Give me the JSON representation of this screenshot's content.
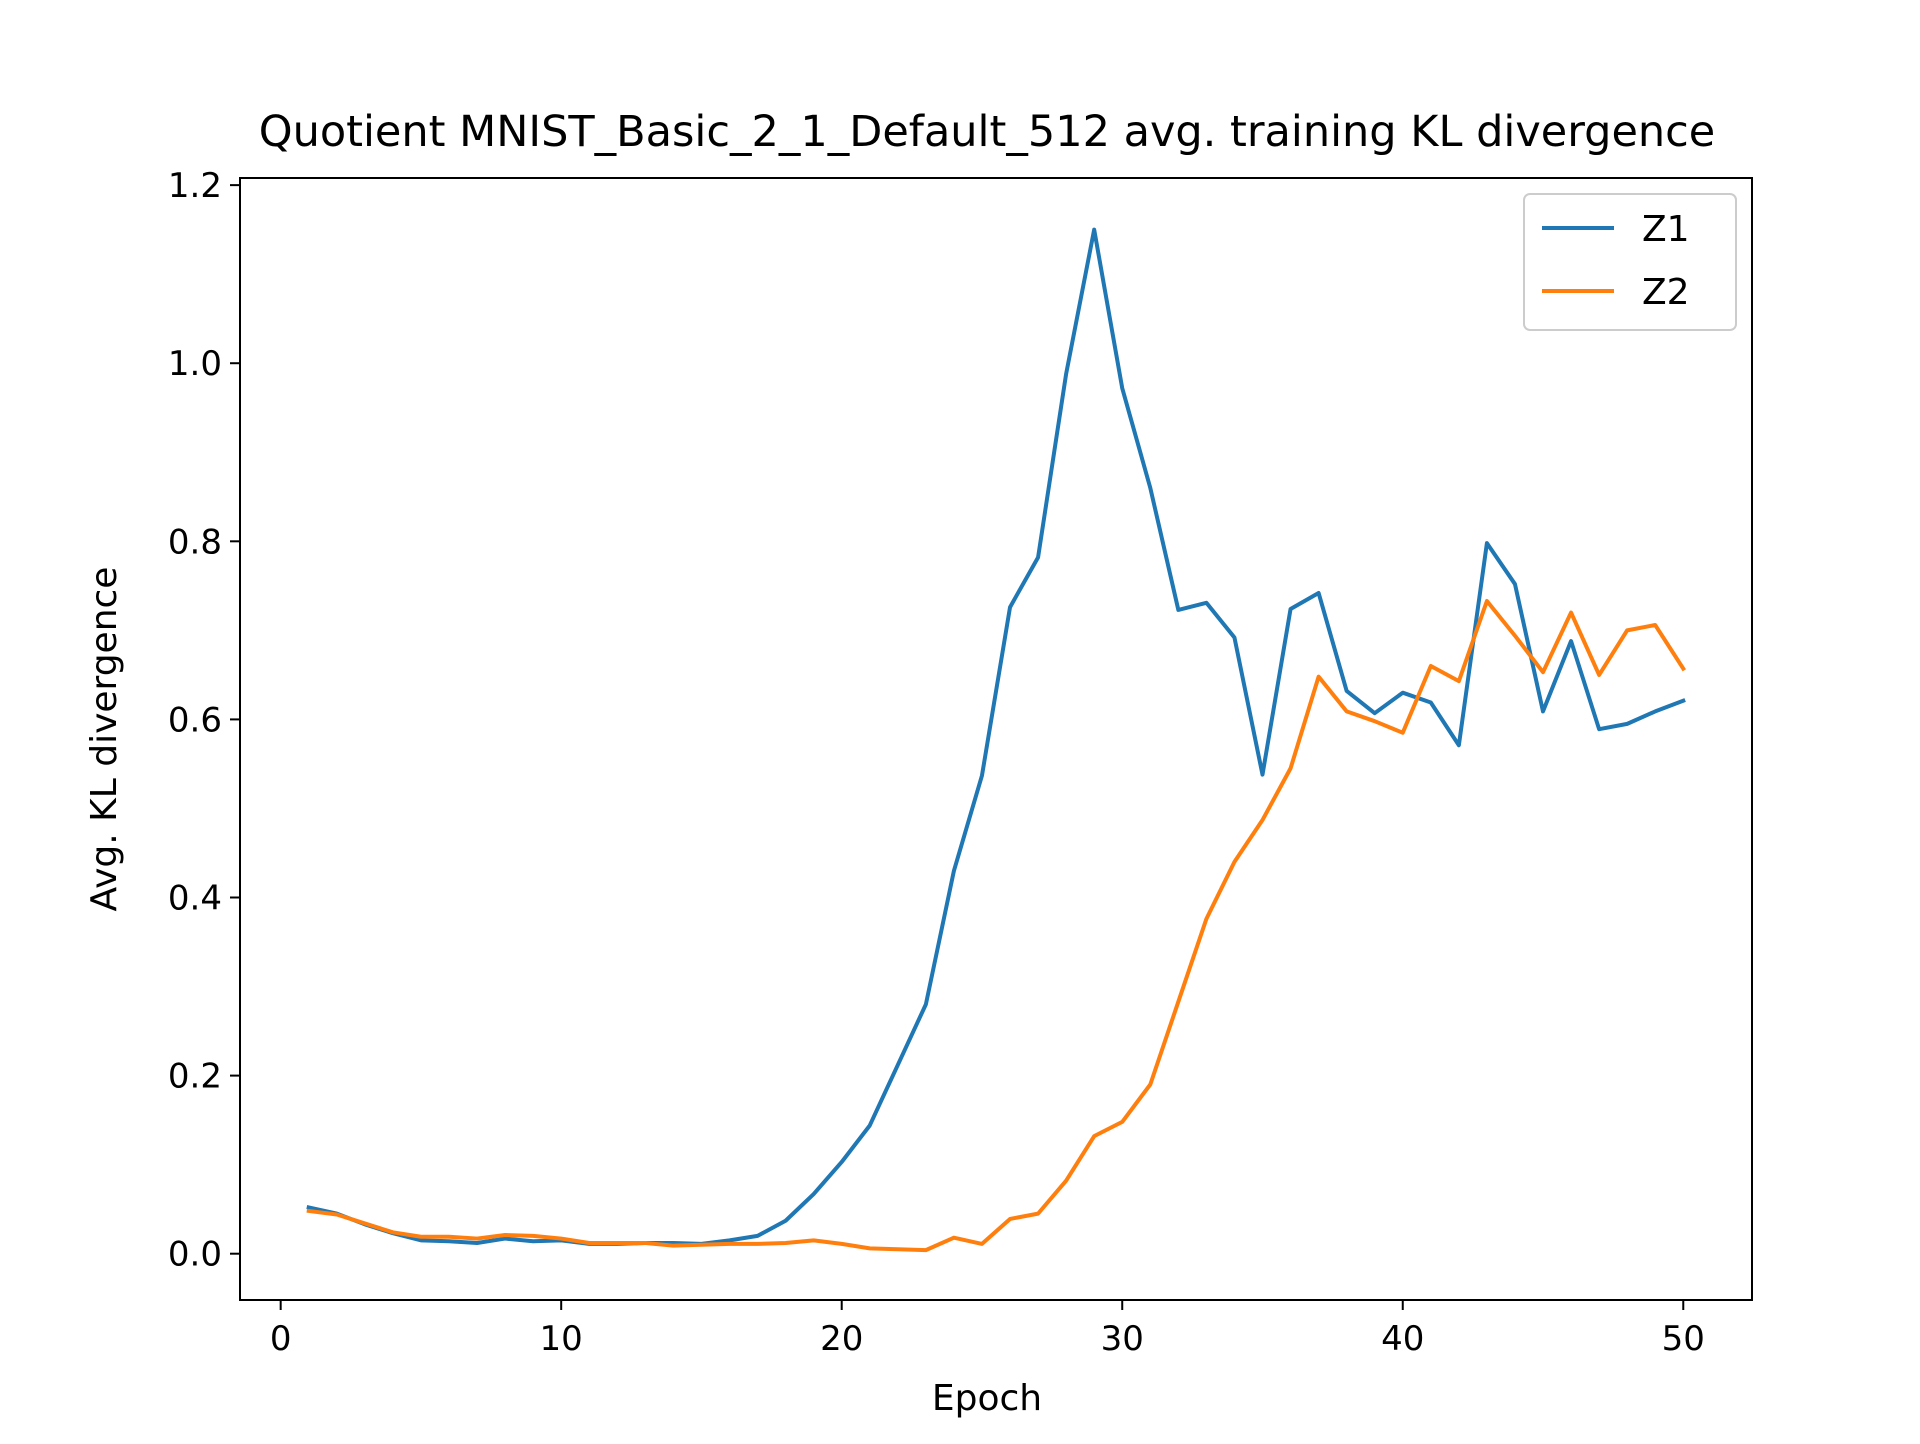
{
  "chart_data": {
    "type": "line",
    "title": "Quotient MNIST_Basic_2_1_Default_512 avg. training KL divergence",
    "xlabel": "Epoch",
    "ylabel": "Avg. KL divergence",
    "xlim": [
      -1.45,
      52.45
    ],
    "ylim": [
      -0.052,
      1.208
    ],
    "xticks": [
      0,
      10,
      20,
      30,
      40,
      50
    ],
    "yticks": [
      0.0,
      0.2,
      0.4,
      0.6,
      0.8,
      1.0,
      1.2
    ],
    "ytick_labels": [
      "0.0",
      "0.2",
      "0.4",
      "0.6",
      "0.8",
      "1.0",
      "1.2"
    ],
    "grid": false,
    "legend_position": "top-right",
    "x": [
      1,
      2,
      3,
      4,
      5,
      6,
      7,
      8,
      9,
      10,
      11,
      12,
      13,
      14,
      15,
      16,
      17,
      18,
      19,
      20,
      21,
      22,
      23,
      24,
      25,
      26,
      27,
      28,
      29,
      30,
      31,
      32,
      33,
      34,
      35,
      36,
      37,
      38,
      39,
      40,
      41,
      42,
      43,
      44,
      45,
      46,
      47,
      48,
      49,
      50
    ],
    "series": [
      {
        "name": "Z1",
        "color": "#1f77b4",
        "values": [
          0.052,
          0.045,
          0.033,
          0.023,
          0.015,
          0.014,
          0.012,
          0.017,
          0.014,
          0.015,
          0.011,
          0.011,
          0.012,
          0.012,
          0.011,
          0.015,
          0.02,
          0.037,
          0.067,
          0.103,
          0.144,
          0.212,
          0.28,
          0.43,
          0.537,
          0.726,
          0.782,
          0.988,
          1.15,
          0.972,
          0.86,
          0.723,
          0.731,
          0.692,
          0.538,
          0.724,
          0.742,
          0.632,
          0.607,
          0.63,
          0.619,
          0.571,
          0.798,
          0.752,
          0.609,
          0.688,
          0.589,
          0.595,
          0.609,
          0.621
        ]
      },
      {
        "name": "Z2",
        "color": "#ff7f0e",
        "values": [
          0.048,
          0.044,
          0.034,
          0.024,
          0.019,
          0.019,
          0.017,
          0.021,
          0.02,
          0.017,
          0.012,
          0.012,
          0.012,
          0.009,
          0.01,
          0.011,
          0.011,
          0.012,
          0.015,
          0.011,
          0.006,
          0.005,
          0.004,
          0.018,
          0.011,
          0.039,
          0.045,
          0.082,
          0.132,
          0.148,
          0.19,
          0.283,
          0.376,
          0.44,
          0.487,
          0.545,
          0.648,
          0.609,
          0.598,
          0.585,
          0.66,
          0.643,
          0.733,
          0.694,
          0.653,
          0.72,
          0.65,
          0.7,
          0.706,
          0.657
        ]
      }
    ]
  }
}
